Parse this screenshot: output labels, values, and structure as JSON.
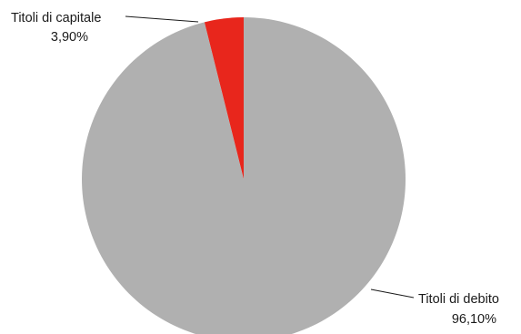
{
  "chart_data": {
    "type": "pie",
    "slices": [
      {
        "label": "Titoli di debito",
        "value": 96.1,
        "value_label": "96,10%",
        "color": "#b0b0b0"
      },
      {
        "label": "Titoli di capitale",
        "value": 3.9,
        "value_label": "3,90%",
        "color": "#e8261c"
      }
    ]
  }
}
